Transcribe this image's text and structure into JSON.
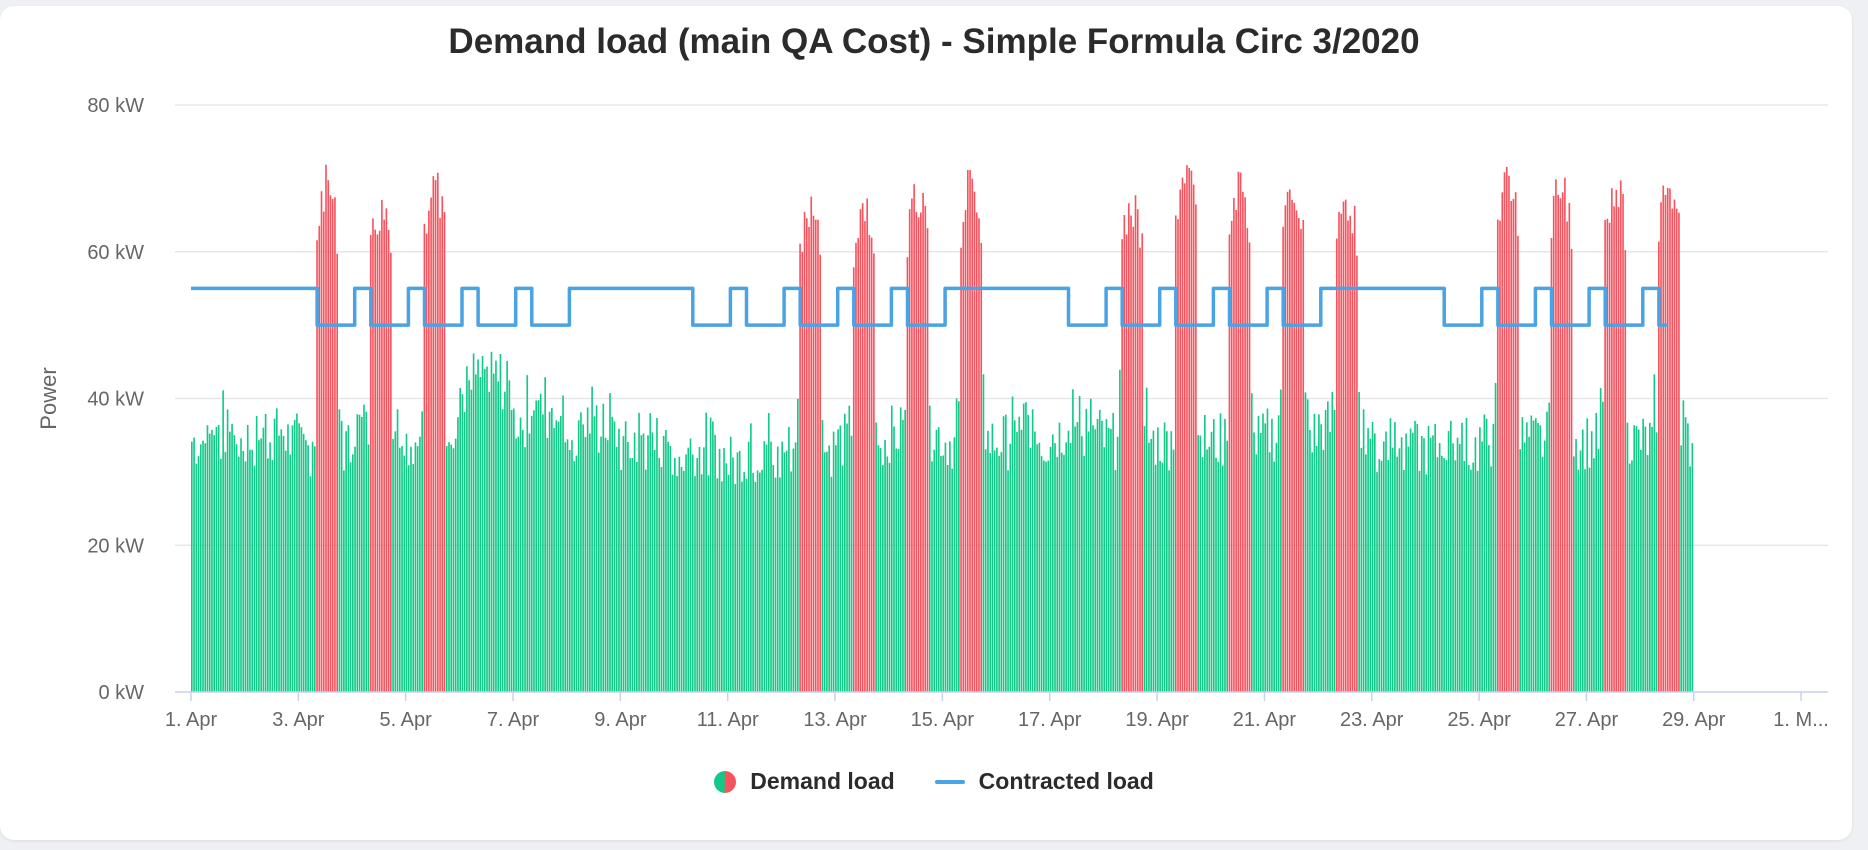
{
  "chart_data": {
    "type": "bar",
    "title": "Demand load (main QA Cost) - Simple Formula Circ 3/2020",
    "ylabel": "Power",
    "ylim": [
      0,
      80
    ],
    "y_ticks": [
      "0 kW",
      "20 kW",
      "40 kW",
      "60 kW",
      "80 kW"
    ],
    "x_ticks": [
      "1. Apr",
      "3. Apr",
      "5. Apr",
      "7. Apr",
      "9. Apr",
      "11. Apr",
      "13. Apr",
      "15. Apr",
      "17. Apr",
      "19. Apr",
      "21. Apr",
      "23. Apr",
      "25. Apr",
      "27. Apr",
      "29. Apr",
      "1. M..."
    ],
    "x_range_days": [
      1,
      31.3
    ],
    "grid": true,
    "legend_placement": "bottom-center",
    "colors": {
      "below_contract": "#12c987",
      "above_contract": "#f5545f",
      "contracted_line": "#4aa3e4"
    },
    "series": [
      {
        "name": "Demand load",
        "type": "column",
        "note_values_kw": "hourly demand per day (kW) from 1 Apr to 28 Apr; weekend days ~30-40 kW, working-day peaks up to ~74 kW",
        "daily_peaks_kw": [
          40,
          38,
          72,
          68,
          72,
          50,
          45,
          41,
          38,
          36,
          41,
          68,
          69,
          70,
          72,
          40,
          41,
          69,
          74,
          72,
          71,
          70,
          40,
          37,
          73,
          72,
          72,
          72
        ],
        "daily_base_kw": [
          33,
          33,
          32,
          35,
          33,
          40,
          36,
          34,
          32,
          31,
          30,
          32,
          33,
          34,
          33,
          33,
          34,
          33,
          33,
          33,
          34,
          35,
          32,
          32,
          33,
          33,
          33,
          33
        ]
      },
      {
        "name": "Contracted load",
        "type": "line",
        "levels_kw": {
          "high": 55,
          "low": 50
        },
        "segments": [
          {
            "from": 1.0,
            "to": 3.35,
            "kw": 55
          },
          {
            "from": 3.35,
            "to": 4.05,
            "kw": 50
          },
          {
            "from": 4.05,
            "to": 4.35,
            "kw": 55
          },
          {
            "from": 4.35,
            "to": 5.05,
            "kw": 50
          },
          {
            "from": 5.05,
            "to": 5.35,
            "kw": 55
          },
          {
            "from": 5.35,
            "to": 6.05,
            "kw": 50
          },
          {
            "from": 6.05,
            "to": 6.35,
            "kw": 55
          },
          {
            "from": 6.35,
            "to": 7.05,
            "kw": 50
          },
          {
            "from": 7.05,
            "to": 7.35,
            "kw": 55
          },
          {
            "from": 7.35,
            "to": 8.05,
            "kw": 50
          },
          {
            "from": 8.05,
            "to": 10.35,
            "kw": 55
          },
          {
            "from": 10.35,
            "to": 11.05,
            "kw": 50
          },
          {
            "from": 11.05,
            "to": 11.35,
            "kw": 55
          },
          {
            "from": 11.35,
            "to": 12.05,
            "kw": 50
          },
          {
            "from": 12.05,
            "to": 12.35,
            "kw": 55
          },
          {
            "from": 12.35,
            "to": 13.05,
            "kw": 50
          },
          {
            "from": 13.05,
            "to": 13.35,
            "kw": 55
          },
          {
            "from": 13.35,
            "to": 14.05,
            "kw": 50
          },
          {
            "from": 14.05,
            "to": 14.35,
            "kw": 55
          },
          {
            "from": 14.35,
            "to": 15.05,
            "kw": 50
          },
          {
            "from": 15.05,
            "to": 17.35,
            "kw": 55
          },
          {
            "from": 17.35,
            "to": 18.05,
            "kw": 50
          },
          {
            "from": 18.05,
            "to": 18.35,
            "kw": 55
          },
          {
            "from": 18.35,
            "to": 19.05,
            "kw": 50
          },
          {
            "from": 19.05,
            "to": 19.35,
            "kw": 55
          },
          {
            "from": 19.35,
            "to": 20.05,
            "kw": 50
          },
          {
            "from": 20.05,
            "to": 20.35,
            "kw": 55
          },
          {
            "from": 20.35,
            "to": 21.05,
            "kw": 50
          },
          {
            "from": 21.05,
            "to": 21.35,
            "kw": 55
          },
          {
            "from": 21.35,
            "to": 22.05,
            "kw": 50
          },
          {
            "from": 22.05,
            "to": 24.35,
            "kw": 55
          },
          {
            "from": 24.35,
            "to": 25.05,
            "kw": 50
          },
          {
            "from": 25.05,
            "to": 25.35,
            "kw": 55
          },
          {
            "from": 25.35,
            "to": 26.05,
            "kw": 50
          },
          {
            "from": 26.05,
            "to": 26.35,
            "kw": 55
          },
          {
            "from": 26.35,
            "to": 27.05,
            "kw": 50
          },
          {
            "from": 27.05,
            "to": 27.35,
            "kw": 55
          },
          {
            "from": 27.35,
            "to": 28.05,
            "kw": 50
          },
          {
            "from": 28.05,
            "to": 28.35,
            "kw": 55
          },
          {
            "from": 28.35,
            "to": 28.5,
            "kw": 50
          }
        ]
      }
    ]
  },
  "legend": {
    "demand_label": "Demand load",
    "contracted_label": "Contracted load"
  }
}
